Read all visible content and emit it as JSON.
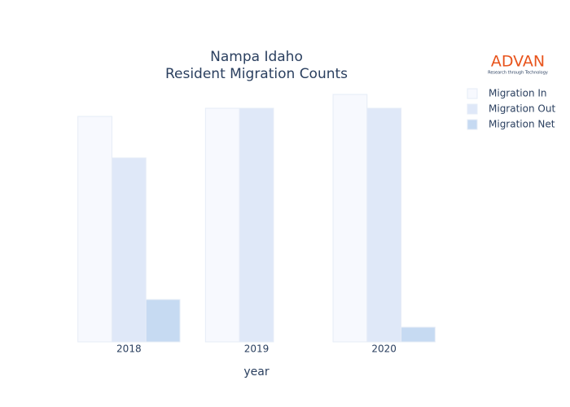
{
  "chart_data": {
    "type": "bar",
    "title": "Nampa Idaho",
    "subtitle": "Resident Migration Counts",
    "x_label": "year",
    "categories": [
      "2018",
      "2019",
      "2020"
    ],
    "series": [
      {
        "name": "Migration In",
        "color": "#f7f9fe",
        "values": [
          2770,
          2870,
          3040
        ]
      },
      {
        "name": "Migration Out",
        "color": "#dfe8f8",
        "values": [
          2260,
          2870,
          2870
        ]
      },
      {
        "name": "Migration Net",
        "color": "#c6daf2",
        "values": [
          520,
          0,
          180
        ]
      }
    ],
    "ylim": [
      0,
      3200
    ],
    "logo": {
      "name": "ADVAN",
      "tagline": "Research through Technology",
      "color": "#e8541c"
    }
  }
}
